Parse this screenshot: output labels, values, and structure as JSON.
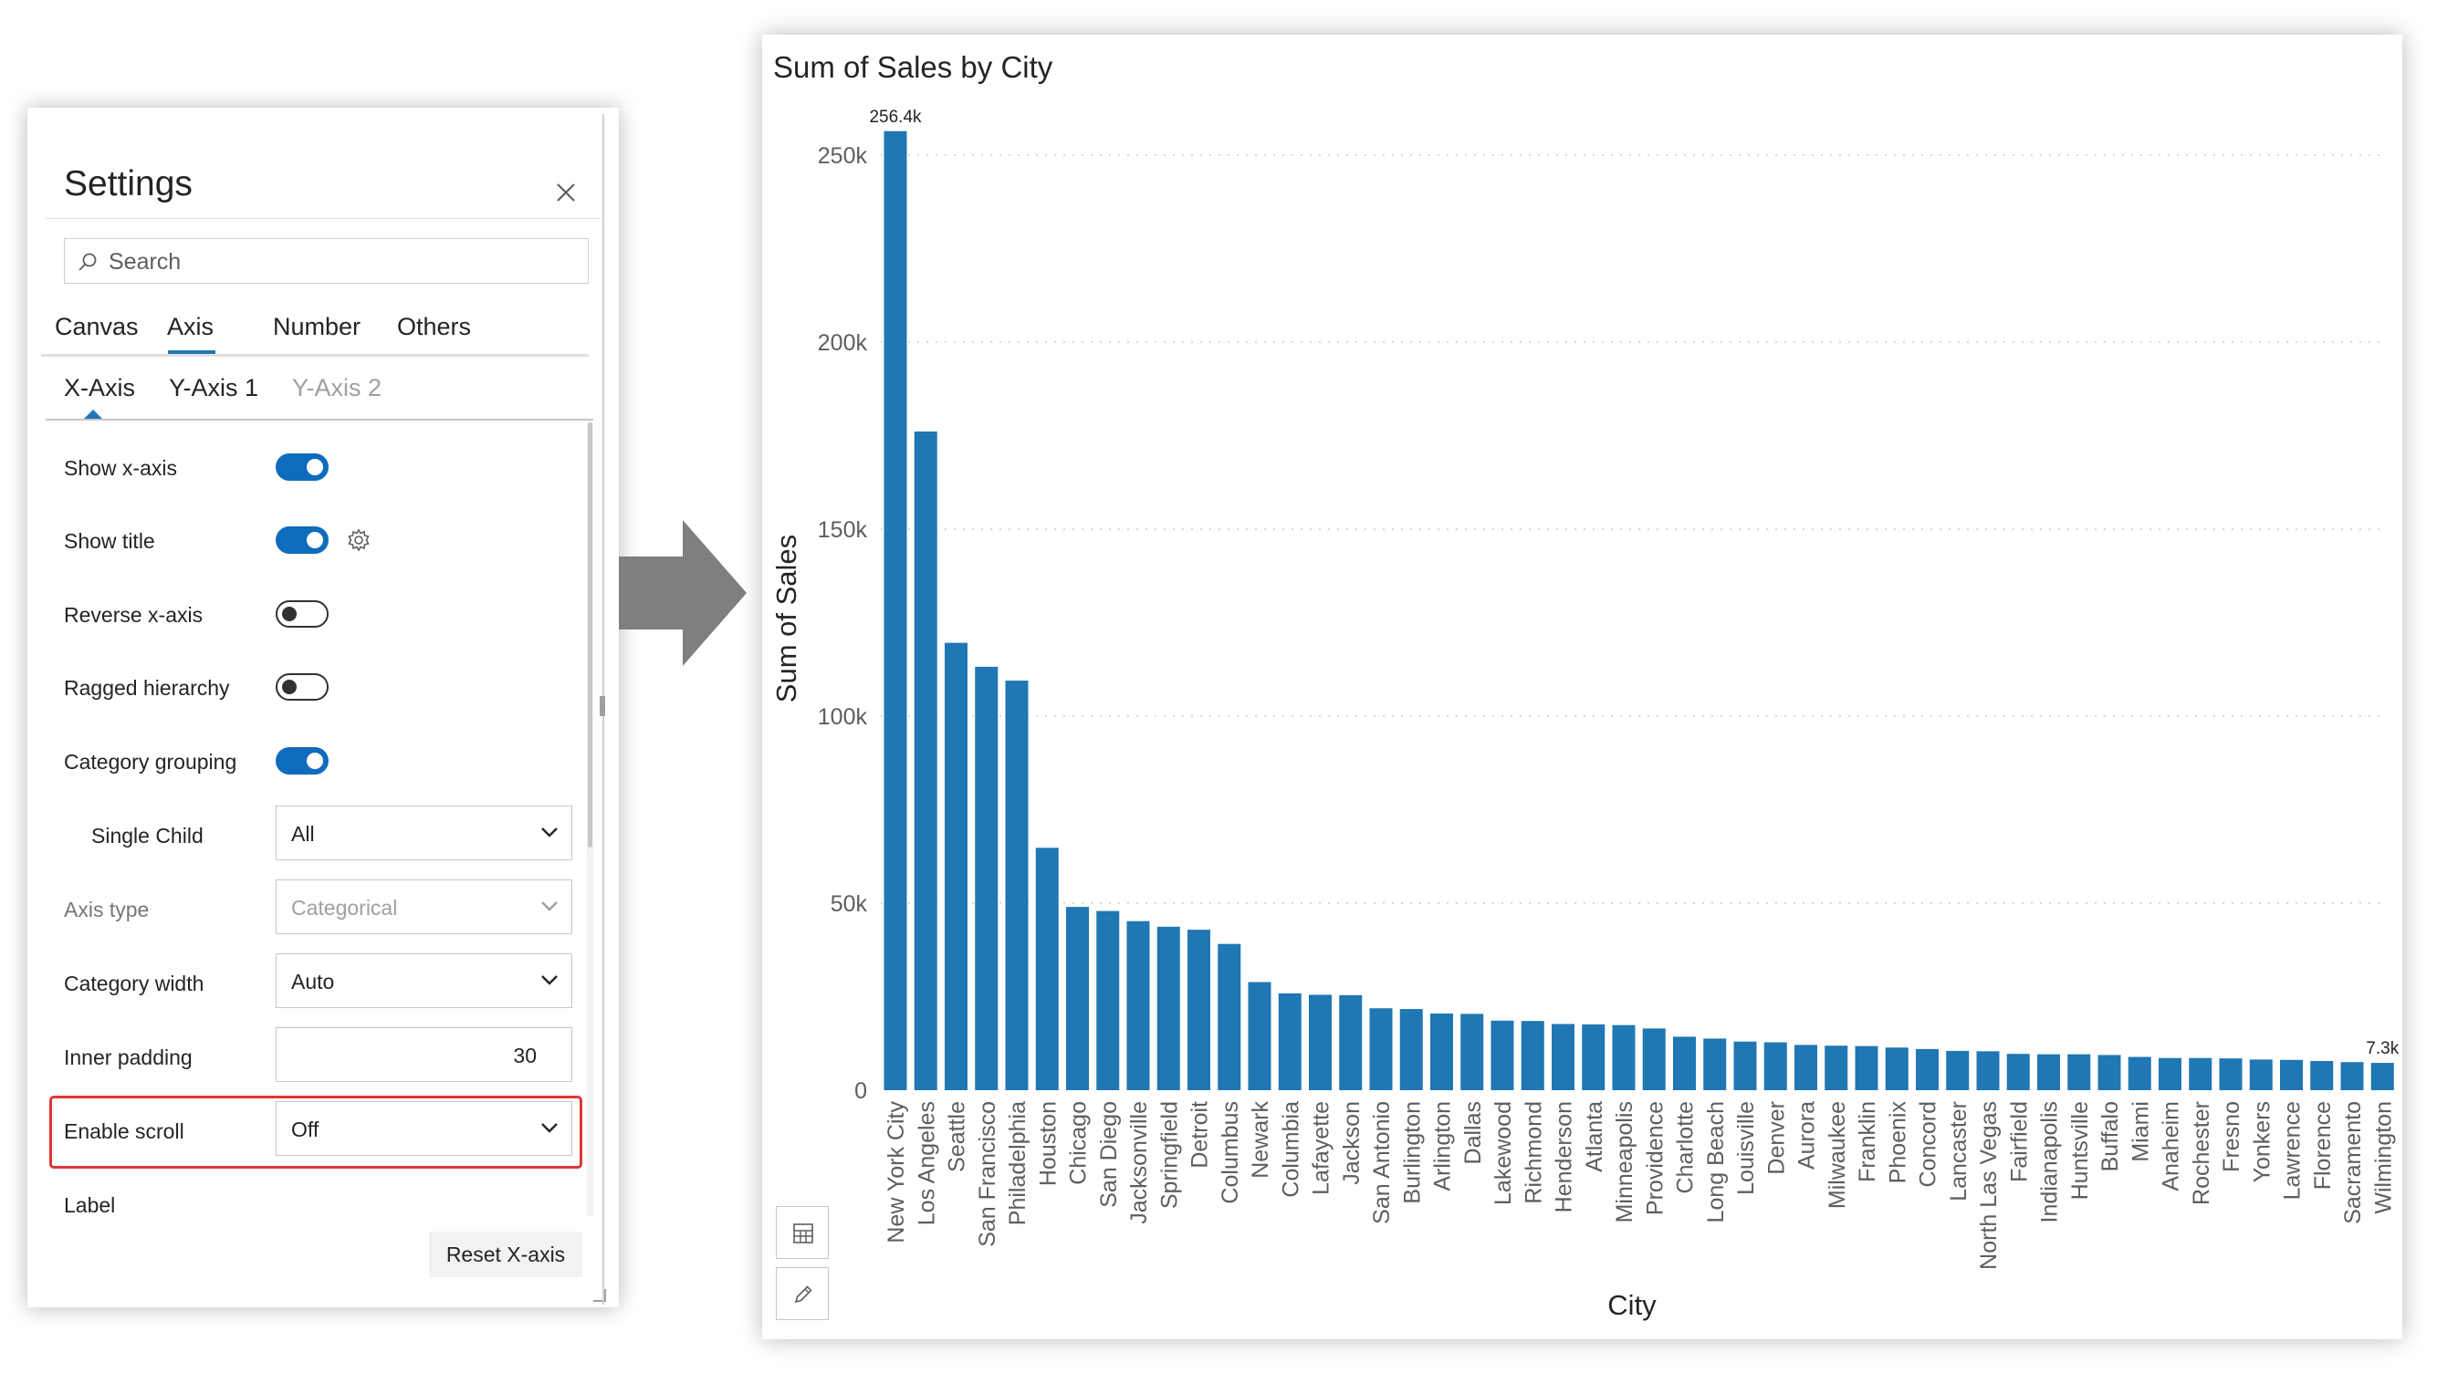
{
  "settings": {
    "title": "Settings",
    "search_placeholder": "Search",
    "tabs": [
      "Canvas",
      "Axis",
      "Number",
      "Others"
    ],
    "active_tab": "Axis",
    "subtabs": [
      "X-Axis",
      "Y-Axis 1",
      "Y-Axis 2"
    ],
    "active_subtab": "X-Axis",
    "props": {
      "show_x_axis": {
        "label": "Show x-axis",
        "value": true
      },
      "show_title": {
        "label": "Show title",
        "value": true
      },
      "reverse_x_axis": {
        "label": "Reverse x-axis",
        "value": false
      },
      "ragged_hierarchy": {
        "label": "Ragged hierarchy",
        "value": false
      },
      "category_grouping": {
        "label": "Category grouping",
        "value": true
      },
      "single_child": {
        "label": "Single Child",
        "value": "All"
      },
      "axis_type": {
        "label": "Axis type",
        "value": "Categorical"
      },
      "category_width": {
        "label": "Category width",
        "value": "Auto"
      },
      "inner_padding": {
        "label": "Inner padding",
        "value": "30"
      },
      "enable_scroll": {
        "label": "Enable scroll",
        "value": "Off"
      },
      "label": {
        "label": "Label"
      }
    },
    "reset_label": "Reset X-axis"
  },
  "chart_data": {
    "type": "bar",
    "title": "Sum of Sales by City",
    "xlabel": "City",
    "ylabel": "Sum of Sales",
    "ylim": [
      0,
      260000
    ],
    "yticks": [
      {
        "value": 0,
        "label": "0"
      },
      {
        "value": 50000,
        "label": "50k"
      },
      {
        "value": 100000,
        "label": "100k"
      },
      {
        "value": 150000,
        "label": "150k"
      },
      {
        "value": 200000,
        "label": "200k"
      },
      {
        "value": 250000,
        "label": "250k"
      }
    ],
    "grid": true,
    "color": "#1f77b4",
    "categories": [
      "New York City",
      "Los Angeles",
      "Seattle",
      "San Francisco",
      "Philadelphia",
      "Houston",
      "Chicago",
      "San Diego",
      "Jacksonville",
      "Springfield",
      "Detroit",
      "Columbus",
      "Newark",
      "Columbia",
      "Lafayette",
      "Jackson",
      "San Antonio",
      "Burlington",
      "Arlington",
      "Dallas",
      "Lakewood",
      "Richmond",
      "Henderson",
      "Atlanta",
      "Minneapolis",
      "Providence",
      "Charlotte",
      "Long Beach",
      "Louisville",
      "Denver",
      "Aurora",
      "Milwaukee",
      "Franklin",
      "Phoenix",
      "Concord",
      "Lancaster",
      "North Las Vegas",
      "Fairfield",
      "Indianapolis",
      "Huntsville",
      "Buffalo",
      "Miami",
      "Anaheim",
      "Rochester",
      "Fresno",
      "Yonkers",
      "Lawrence",
      "Florence",
      "Sacramento",
      "Wilmington"
    ],
    "values": [
      256400,
      176100,
      119600,
      113200,
      109500,
      64800,
      49000,
      47900,
      45200,
      43700,
      42900,
      39100,
      28900,
      25900,
      25500,
      25400,
      21900,
      21700,
      20500,
      20400,
      18600,
      18500,
      17700,
      17600,
      17400,
      16500,
      14300,
      13800,
      13000,
      12800,
      12100,
      11900,
      11800,
      11400,
      11000,
      10500,
      10400,
      9700,
      9600,
      9600,
      9400,
      8900,
      8600,
      8600,
      8500,
      8200,
      8100,
      7800,
      7500,
      7300
    ],
    "data_labels": {
      "0": "256.4k",
      "49": "7.3k"
    }
  }
}
